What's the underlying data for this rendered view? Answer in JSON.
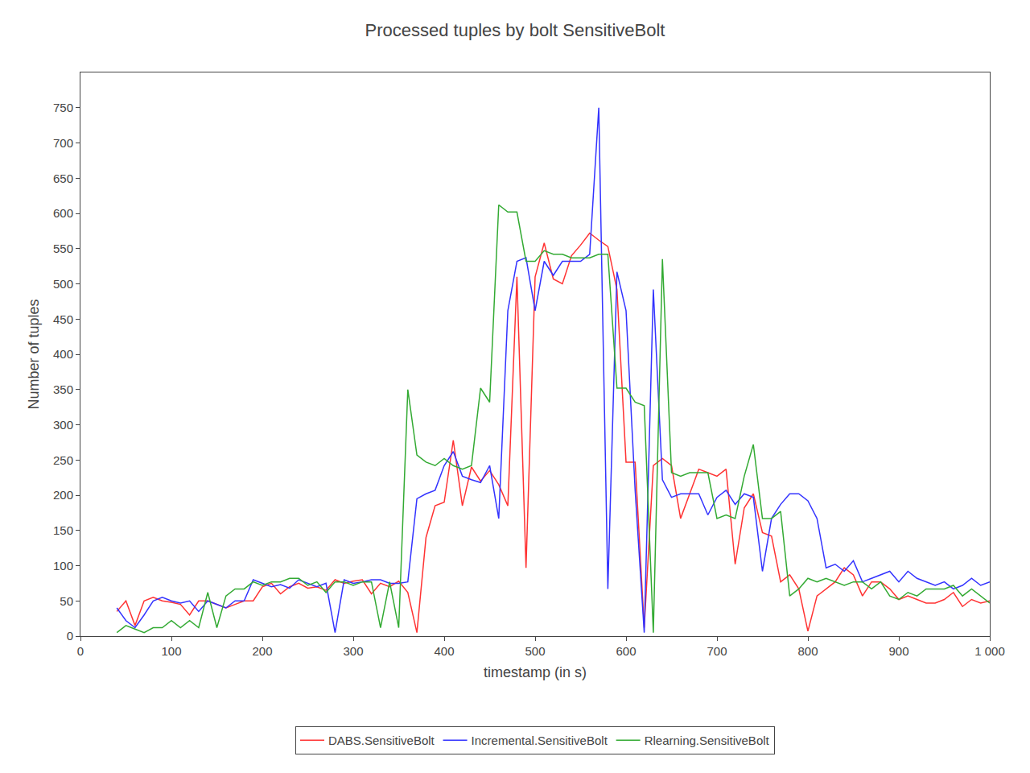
{
  "chart_data": {
    "type": "line",
    "title": "Processed tuples by bolt SensitiveBolt",
    "xlabel": "timestamp (in s)",
    "ylabel": "Number of tuples",
    "xlim": [
      0,
      1000
    ],
    "ylim": [
      0,
      800
    ],
    "xticks": [
      0,
      100,
      200,
      300,
      400,
      500,
      600,
      700,
      800,
      900,
      {
        "value": 1000,
        "label": "1 000"
      }
    ],
    "yticks": [
      0,
      50,
      100,
      150,
      200,
      250,
      300,
      350,
      400,
      450,
      500,
      550,
      600,
      650,
      700,
      750
    ],
    "grid": false,
    "legend": "bottom",
    "x": [
      40,
      50,
      60,
      70,
      80,
      90,
      100,
      110,
      120,
      130,
      140,
      150,
      160,
      170,
      180,
      190,
      200,
      210,
      220,
      230,
      240,
      250,
      260,
      270,
      280,
      290,
      300,
      310,
      320,
      330,
      340,
      350,
      360,
      370,
      380,
      390,
      400,
      410,
      420,
      430,
      440,
      450,
      460,
      470,
      480,
      490,
      500,
      510,
      520,
      530,
      540,
      550,
      560,
      570,
      580,
      590,
      600,
      610,
      620,
      630,
      640,
      650,
      660,
      670,
      680,
      690,
      700,
      710,
      720,
      730,
      740,
      750,
      760,
      770,
      780,
      790,
      800,
      810,
      820,
      830,
      840,
      850,
      860,
      870,
      880,
      890,
      900,
      910,
      920,
      930,
      940,
      950,
      960,
      970,
      980,
      990,
      1000
    ],
    "series": [
      {
        "name": "DABS.SensitiveBolt",
        "color": "#ff3333",
        "values": [
          35,
          50,
          15,
          50,
          55,
          50,
          48,
          45,
          30,
          50,
          50,
          45,
          40,
          45,
          50,
          50,
          70,
          75,
          60,
          70,
          75,
          68,
          70,
          65,
          80,
          75,
          78,
          80,
          60,
          75,
          70,
          78,
          62,
          5,
          140,
          185,
          190,
          278,
          185,
          240,
          220,
          235,
          215,
          185,
          510,
          97,
          510,
          558,
          507,
          500,
          540,
          555,
          572,
          562,
          553,
          492,
          247,
          247,
          12,
          242,
          252,
          242,
          167,
          202,
          237,
          232,
          227,
          237,
          102,
          182,
          202,
          147,
          142,
          77,
          87,
          67,
          7,
          57,
          67,
          77,
          97,
          87,
          57,
          77,
          77,
          67,
          52,
          57,
          52,
          47,
          47,
          52,
          62,
          42,
          52,
          47,
          50
        ]
      },
      {
        "name": "Incremental.SensitiveBolt",
        "color": "#3333ff",
        "values": [
          40,
          22,
          12,
          30,
          50,
          55,
          50,
          47,
          50,
          35,
          50,
          45,
          40,
          50,
          50,
          80,
          75,
          70,
          73,
          68,
          80,
          75,
          70,
          75,
          5,
          80,
          75,
          77,
          80,
          80,
          75,
          75,
          77,
          195,
          202,
          207,
          242,
          262,
          227,
          222,
          218,
          242,
          167,
          462,
          532,
          537,
          462,
          532,
          512,
          532,
          532,
          532,
          542,
          750,
          67,
          517,
          462,
          207,
          5,
          492,
          222,
          197,
          202,
          202,
          202,
          172,
          197,
          207,
          187,
          202,
          197,
          92,
          167,
          187,
          202,
          202,
          192,
          167,
          97,
          102,
          92,
          107,
          77,
          82,
          87,
          92,
          77,
          92,
          82,
          77,
          72,
          77,
          67,
          72,
          82,
          72,
          77
        ]
      },
      {
        "name": "Rlearning.SensitiveBolt",
        "color": "#33aa33",
        "values": [
          5,
          15,
          10,
          5,
          12,
          12,
          22,
          12,
          22,
          12,
          62,
          12,
          57,
          67,
          67,
          77,
          72,
          77,
          77,
          82,
          82,
          72,
          77,
          62,
          77,
          77,
          72,
          77,
          77,
          12,
          77,
          12,
          350,
          257,
          247,
          242,
          252,
          242,
          237,
          242,
          352,
          332,
          612,
          602,
          602,
          532,
          532,
          547,
          542,
          542,
          537,
          537,
          537,
          542,
          542,
          352,
          352,
          332,
          327,
          5,
          535,
          232,
          227,
          232,
          232,
          232,
          167,
          172,
          167,
          227,
          272,
          167,
          167,
          177,
          57,
          67,
          82,
          77,
          82,
          77,
          72,
          77,
          77,
          67,
          77,
          57,
          52,
          62,
          57,
          67,
          67,
          67,
          72,
          57,
          67,
          57,
          47
        ]
      }
    ]
  }
}
